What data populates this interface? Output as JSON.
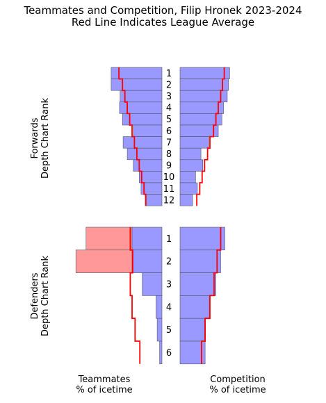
{
  "chart_data": {
    "type": "bar",
    "title": "Teammates and Competition, Filip Hronek 2023-2024",
    "subtitle": "Red Line Indicates League Average",
    "panels": [
      {
        "name": "Forwards",
        "ylabel_line1": "Forwards",
        "ylabel_line2": "Depth Chart Rank",
        "categories": [
          "1",
          "2",
          "3",
          "4",
          "5",
          "6",
          "7",
          "8",
          "9",
          "10",
          "11",
          "12"
        ],
        "teammates": [
          85,
          85,
          70,
          71,
          66,
          48,
          65,
          58,
          48,
          38,
          35,
          28
        ],
        "teammates_league_avg": [
          72,
          66,
          62,
          58,
          54,
          50,
          46,
          42,
          38,
          34,
          30,
          27
        ],
        "competition": [
          83,
          81,
          79,
          73,
          70,
          64,
          48,
          35,
          38,
          26,
          29,
          21
        ],
        "competition_league_avg": [
          74,
          71,
          68,
          64,
          60,
          56,
          50,
          46,
          41,
          37,
          33,
          28
        ]
      },
      {
        "name": "Defenders",
        "ylabel_line1": "Defenders",
        "ylabel_line2": "Depth Chart Rank",
        "categories": [
          "1",
          "2",
          "3",
          "4",
          "5",
          "6"
        ],
        "teammates": [
          127,
          144,
          33,
          10,
          8,
          4
        ],
        "teammates_league_avg": [
          53,
          49,
          53,
          50,
          45,
          37
        ],
        "competition": [
          75,
          68,
          60,
          49,
          41,
          42
        ],
        "competition_league_avg": [
          68,
          62,
          57,
          50,
          42,
          36
        ]
      }
    ],
    "xlabel_left_line1": "Teammates",
    "xlabel_left_line2": "% of icetime",
    "xlabel_right_line1": "Competition",
    "xlabel_right_line2": "% of icetime",
    "colors": {
      "bar_fill": "#9999ff",
      "bar_highlight_fill": "#ff9999",
      "bar_stroke": "#555566",
      "league_line": "#ff0000"
    }
  }
}
